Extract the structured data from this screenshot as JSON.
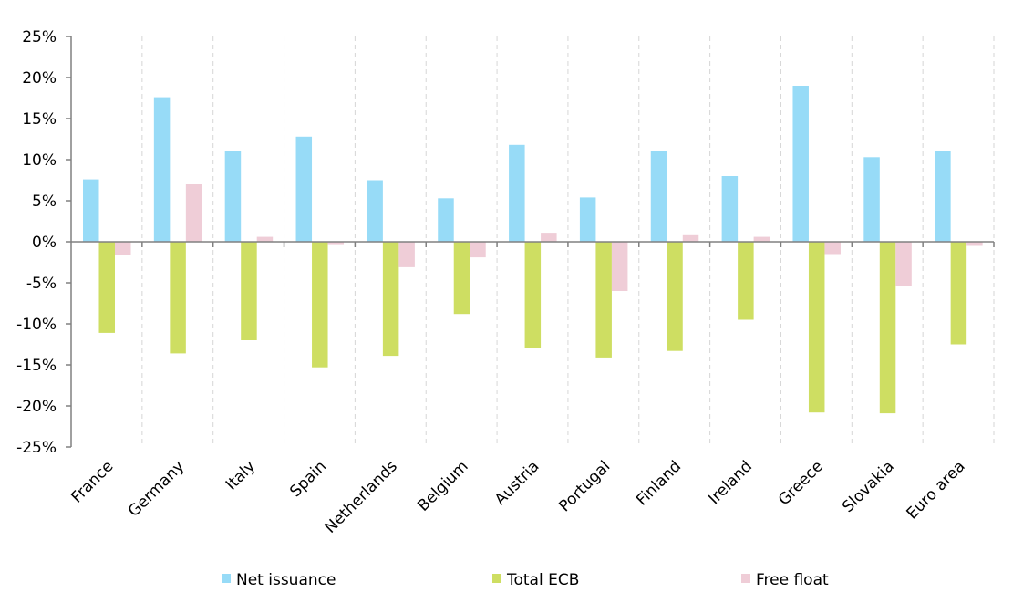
{
  "chart_data": {
    "type": "bar",
    "categories": [
      "France",
      "Germany",
      "Italy",
      "Spain",
      "Netherlands",
      "Belgium",
      "Austria",
      "Portugal",
      "Finland",
      "Ireland",
      "Greece",
      "Slovakia",
      "Euro area"
    ],
    "series": [
      {
        "name": "Net issuance",
        "color": "#97dbf7",
        "values": [
          7.6,
          17.6,
          11.0,
          12.8,
          7.5,
          5.3,
          11.8,
          5.4,
          11.0,
          8.0,
          19.0,
          10.3,
          11.0
        ]
      },
      {
        "name": "Total ECB",
        "color": "#cede62",
        "values": [
          -11.1,
          -13.6,
          -12.0,
          -15.3,
          -13.9,
          -8.8,
          -12.9,
          -14.1,
          -13.3,
          -9.5,
          -20.8,
          -20.9,
          -12.5
        ]
      },
      {
        "name": "Free float",
        "color": "#efcdd7",
        "values": [
          -1.6,
          7.0,
          0.6,
          -0.4,
          -3.1,
          -1.9,
          1.1,
          -6.0,
          0.8,
          0.6,
          -1.5,
          -5.4,
          -0.5
        ]
      }
    ],
    "ylim": [
      -25,
      25
    ],
    "yticks": [
      "25%",
      "20%",
      "15%",
      "10%",
      "5%",
      "0%",
      "-5%",
      "-10%",
      "-15%",
      "-20%",
      "-25%"
    ],
    "ytick_values": [
      25,
      20,
      15,
      10,
      5,
      0,
      -5,
      -10,
      -15,
      -20,
      -25
    ],
    "legend_position": "bottom",
    "grid": "vertical dashed category separators"
  }
}
